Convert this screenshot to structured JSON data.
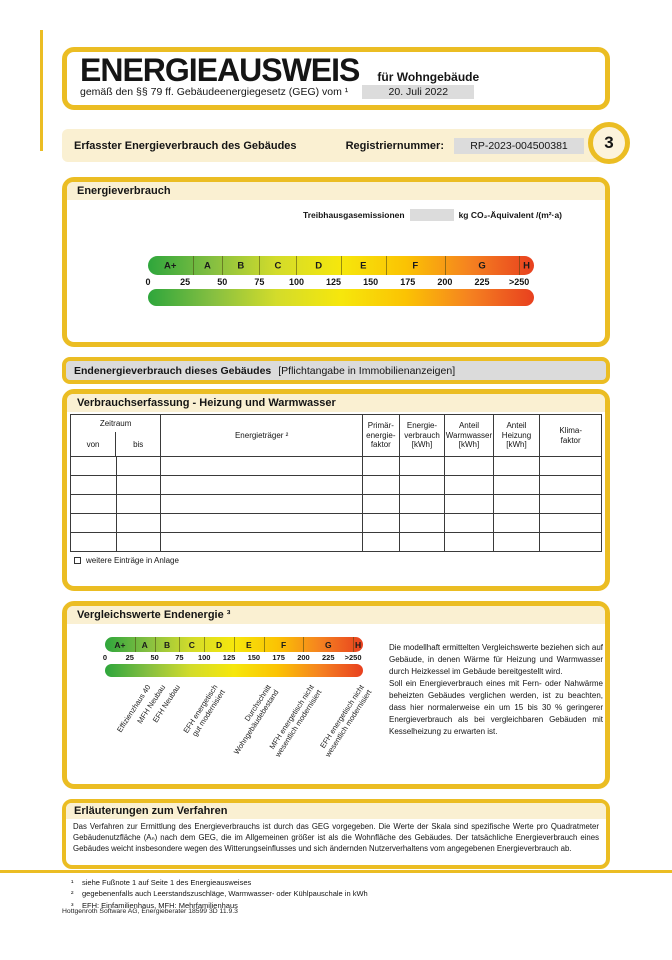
{
  "colors": {
    "frame": "#EBBD23",
    "cream": "#FAF0D2",
    "field_grey": "#DCDCDC",
    "bar_grey": "#DBDBDB"
  },
  "header": {
    "title": "ENERGIEAUSWEIS",
    "subtitle": "für Wohngebäude",
    "law_line": "gemäß den §§ 79 ff. Gebäudeenergiegesetz (GEG) vom ¹",
    "date": "20. Juli 2022"
  },
  "registration": {
    "label": "Erfasster Energieverbrauch des Gebäudes",
    "number_label": "Registriernummer:",
    "number_value": "RP-2023-004500381",
    "page_number": "3"
  },
  "consumption": {
    "title": "Energieverbrauch",
    "ghg_label": "Treibhausgasemissionen",
    "ghg_value": "",
    "ghg_unit": "kg CO₂-Äquivalent /(m²·a)"
  },
  "chart_data": {
    "type": "bar",
    "title": "Energieverbrauch Skala A+ bis H",
    "max": 260,
    "segments": [
      {
        "label": "A+",
        "from": 0,
        "to": 30
      },
      {
        "label": "A",
        "from": 30,
        "to": 50
      },
      {
        "label": "B",
        "from": 50,
        "to": 75
      },
      {
        "label": "C",
        "from": 75,
        "to": 100
      },
      {
        "label": "D",
        "from": 100,
        "to": 130
      },
      {
        "label": "E",
        "from": 130,
        "to": 160
      },
      {
        "label": "F",
        "from": 160,
        "to": 200
      },
      {
        "label": "G",
        "from": 200,
        "to": 250
      },
      {
        "label": "H",
        "from": 250,
        "to": 260
      }
    ],
    "ticks": [
      "0",
      "25",
      "50",
      "75",
      "100",
      "125",
      "150",
      "175",
      "200",
      "225",
      ">250"
    ],
    "tick_values": [
      0,
      25,
      50,
      75,
      100,
      125,
      150,
      175,
      200,
      225,
      250
    ],
    "gradient": [
      "#2ea63c",
      "#85bf41",
      "#d3dc2b",
      "#f6e70c",
      "#fbc303",
      "#f58220",
      "#e8401f"
    ]
  },
  "published_bar": {
    "bold": "Endenergieverbrauch dieses Gebäudes",
    "normal": "[Pflichtangabe in Immobilienanzeigen]"
  },
  "consumption_table": {
    "title": "Verbrauchserfassung - Heizung und Warmwasser",
    "zeitraum": "Zeitraum",
    "von": "von",
    "bis": "bis",
    "energietraeger": "Energieträger ²",
    "primaer": "Primär-\nenergie-\nfaktor",
    "verbrauch": "Energie-\nverbrauch\n[kWh]",
    "warmwasser": "Anteil\nWarmwasser\n[kWh]",
    "heizung": "Anteil\nHeizung\n[kWh]",
    "klima": "Klima-\nfaktor",
    "empty_rows": 5,
    "checkbox_label": "weitere Einträge in Anlage"
  },
  "comparison": {
    "title": "Vergleichswerte Endenergie ³",
    "markers": [
      {
        "label": "Effizienzhaus 40",
        "value": 40
      },
      {
        "label": "MFH Neubau",
        "value": 55
      },
      {
        "label": "EFH Neubau",
        "value": 70
      },
      {
        "label": "EFH energetisch\ngut modernisiert",
        "value": 108
      },
      {
        "label": "Durchschnitt\nWohngebäudebestand",
        "value": 162
      },
      {
        "label": "MFH energetisch nicht\nwesentlich modernisiert",
        "value": 205
      },
      {
        "label": "EFH energetisch nicht\nwesentlich modernisiert",
        "value": 255
      }
    ],
    "paragraph1": "Die modellhaft ermittelten Vergleichswerte beziehen sich auf Gebäude, in denen Wärme für Heizung und Warmwasser durch Heizkessel im Gebäude bereitgestellt wird.",
    "paragraph2": "Soll ein Energieverbrauch eines mit Fern- oder Nahwärme beheizten Gebäudes verglichen werden, ist zu beachten, dass hier normalerweise ein um 15 bis 30 % geringerer Energieverbrauch als bei vergleichbaren Gebäuden mit Kesselheizung zu erwarten ist."
  },
  "explanation": {
    "title": "Erläuterungen zum Verfahren",
    "body": "Das Verfahren zur Ermittlung des Energieverbrauchs ist durch das GEG vorgegeben. Die Werte der Skala sind spezifische Werte pro Quadratmeter Gebäudenutzfläche (Aₙ) nach dem GEG, die im Allgemeinen größer ist als die Wohnfläche des Gebäudes. Der tatsächliche Energieverbrauch eines Gebäudes weicht insbesondere wegen des Witterungseinflusses und sich ändernden Nutzerverhaltens vom angegebenen Energieverbrauch ab."
  },
  "footnotes": [
    {
      "mark": "¹",
      "text": "siehe Fußnote 1 auf Seite 1 des Energieausweises"
    },
    {
      "mark": "²",
      "text": "gegebenenfalls auch Leerstandszuschläge, Warmwasser- oder Kühlpauschale in kWh"
    },
    {
      "mark": "³",
      "text": "EFH: Einfamilienhaus, MFH: Mehrfamilienhaus"
    }
  ],
  "footer": "Hottgenroth Software AG, Energieberater 18599 3D 11.9.3"
}
